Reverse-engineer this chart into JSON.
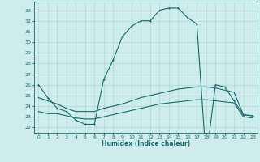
{
  "xlabel": "Humidex (Indice chaleur)",
  "xlim": [
    -0.5,
    23.5
  ],
  "ylim": [
    21.5,
    33.8
  ],
  "yticks": [
    22,
    23,
    24,
    25,
    26,
    27,
    28,
    29,
    30,
    31,
    32,
    33
  ],
  "xticks": [
    0,
    1,
    2,
    3,
    4,
    5,
    6,
    7,
    8,
    9,
    10,
    11,
    12,
    13,
    14,
    15,
    16,
    17,
    18,
    19,
    20,
    21,
    22,
    23
  ],
  "bg_color": "#ceecea",
  "grid_color": "#b0d8d5",
  "line_color": "#1a6b6b",
  "line1_x": [
    0,
    1,
    2,
    3,
    4,
    5,
    6,
    7,
    8,
    9,
    10,
    11,
    12,
    13,
    14,
    15,
    16,
    17,
    18,
    19,
    20,
    21,
    22,
    23
  ],
  "line1_y": [
    26.0,
    24.8,
    23.8,
    23.5,
    22.7,
    22.3,
    22.3,
    26.5,
    28.3,
    30.5,
    31.5,
    32.0,
    32.0,
    33.0,
    33.2,
    33.2,
    32.3,
    31.7,
    19.0,
    26.0,
    25.8,
    24.5,
    23.2,
    23.1
  ],
  "line2_x": [
    0,
    1,
    2,
    3,
    4,
    5,
    6,
    7,
    8,
    9,
    10,
    11,
    12,
    13,
    14,
    15,
    16,
    17,
    18,
    19,
    20,
    21,
    22,
    23
  ],
  "line2_y": [
    24.8,
    24.5,
    24.2,
    23.8,
    23.5,
    23.5,
    23.5,
    23.8,
    24.0,
    24.2,
    24.5,
    24.8,
    25.0,
    25.2,
    25.4,
    25.6,
    25.7,
    25.8,
    25.8,
    25.7,
    25.5,
    25.3,
    23.2,
    23.1
  ],
  "line3_x": [
    0,
    1,
    2,
    3,
    4,
    5,
    6,
    7,
    8,
    9,
    10,
    11,
    12,
    13,
    14,
    15,
    16,
    17,
    18,
    19,
    20,
    21,
    22,
    23
  ],
  "line3_y": [
    23.5,
    23.3,
    23.3,
    23.1,
    22.9,
    22.8,
    22.8,
    23.0,
    23.2,
    23.4,
    23.6,
    23.8,
    24.0,
    24.2,
    24.3,
    24.4,
    24.5,
    24.6,
    24.6,
    24.5,
    24.4,
    24.3,
    23.0,
    22.9
  ]
}
